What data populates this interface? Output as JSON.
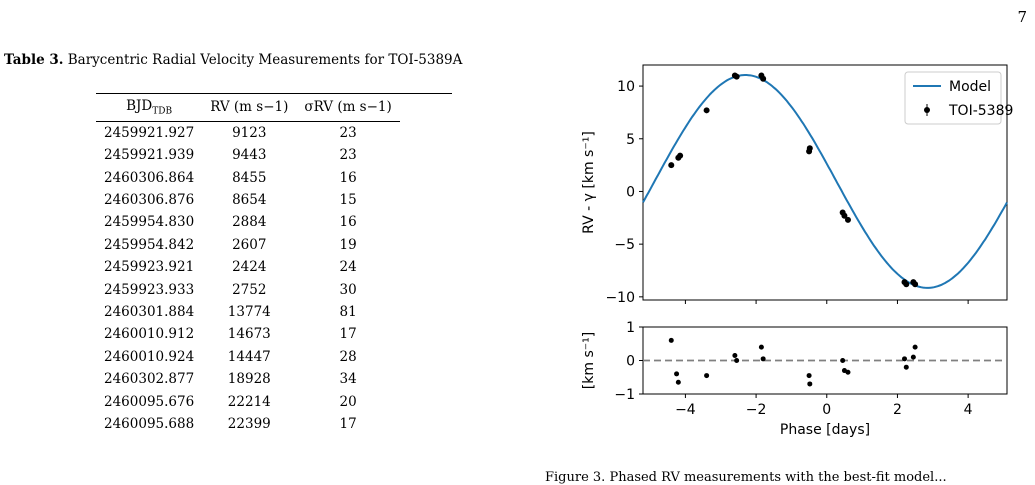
{
  "page_number": "7",
  "table": {
    "label": "Table 3.",
    "title": "Barycentric Radial Velocity Measurements for TOI-5389A",
    "headers": [
      "BJD",
      "RV (m s−1)",
      "σRV (m s−1)"
    ],
    "header_sub": "TDB",
    "rows": [
      [
        "2459921.927",
        "9123",
        "23"
      ],
      [
        "2459921.939",
        "9443",
        "23"
      ],
      [
        "2460306.864",
        "8455",
        "16"
      ],
      [
        "2460306.876",
        "8654",
        "15"
      ],
      [
        "2459954.830",
        "2884",
        "16"
      ],
      [
        "2459954.842",
        "2607",
        "19"
      ],
      [
        "2459923.921",
        "2424",
        "24"
      ],
      [
        "2459923.933",
        "2752",
        "30"
      ],
      [
        "2460301.884",
        "13774",
        "81"
      ],
      [
        "2460010.912",
        "14673",
        "17"
      ],
      [
        "2460010.924",
        "14447",
        "28"
      ],
      [
        "2460302.877",
        "18928",
        "34"
      ],
      [
        "2460095.676",
        "22214",
        "20"
      ],
      [
        "2460095.688",
        "22399",
        "17"
      ]
    ]
  },
  "figure_caption_fragment": "Figure 3.  Phased RV measurements with the best-fit model...",
  "chart_data": [
    {
      "type": "line",
      "title": "",
      "xlabel": "",
      "ylabel": "RV - γ [km s⁻¹]",
      "xlim": [
        -5.2,
        5.1
      ],
      "ylim": [
        -10.3,
        12.0
      ],
      "yticks": [
        -10,
        -5,
        0,
        5,
        10
      ],
      "legend": {
        "placement": "top-right",
        "entries": [
          "Model",
          "TOI-5389"
        ]
      },
      "model": {
        "name": "Model",
        "amplitude": 10.1,
        "offset": 0.95,
        "period": 10.3,
        "peak_x": -2.3,
        "color": "#1f77b4"
      },
      "series": [
        {
          "name": "TOI-5389",
          "x": [
            -4.4,
            -4.2,
            -4.15,
            -3.4,
            -2.6,
            -2.55,
            -1.85,
            -1.8,
            -0.5,
            -0.48,
            0.45,
            0.5,
            0.6,
            2.2,
            2.25,
            2.45,
            2.5
          ],
          "y": [
            2.5,
            3.2,
            3.4,
            7.7,
            11.0,
            10.9,
            11.0,
            10.7,
            3.8,
            4.1,
            -2.0,
            -2.3,
            -2.7,
            -8.6,
            -8.8,
            -8.6,
            -8.8
          ]
        }
      ]
    },
    {
      "type": "scatter",
      "xlabel": "Phase [days]",
      "ylabel": "[km s⁻¹]",
      "xlim": [
        -5.2,
        5.1
      ],
      "ylim": [
        -1.0,
        1.0
      ],
      "xticks": [
        -4,
        -2,
        0,
        2,
        4
      ],
      "yticks": [
        -1,
        0,
        1
      ],
      "zero_line": true,
      "series": [
        {
          "name": "residuals",
          "x": [
            -4.4,
            -4.25,
            -4.2,
            -3.4,
            -2.6,
            -2.55,
            -1.85,
            -1.8,
            -0.5,
            -0.48,
            0.45,
            0.5,
            0.6,
            2.2,
            2.25,
            2.45,
            2.5
          ],
          "y": [
            0.6,
            -0.4,
            -0.65,
            -0.45,
            0.15,
            0.0,
            0.4,
            0.05,
            -0.45,
            -0.7,
            0.0,
            -0.3,
            -0.35,
            0.05,
            -0.2,
            0.1,
            0.4
          ]
        }
      ]
    }
  ]
}
